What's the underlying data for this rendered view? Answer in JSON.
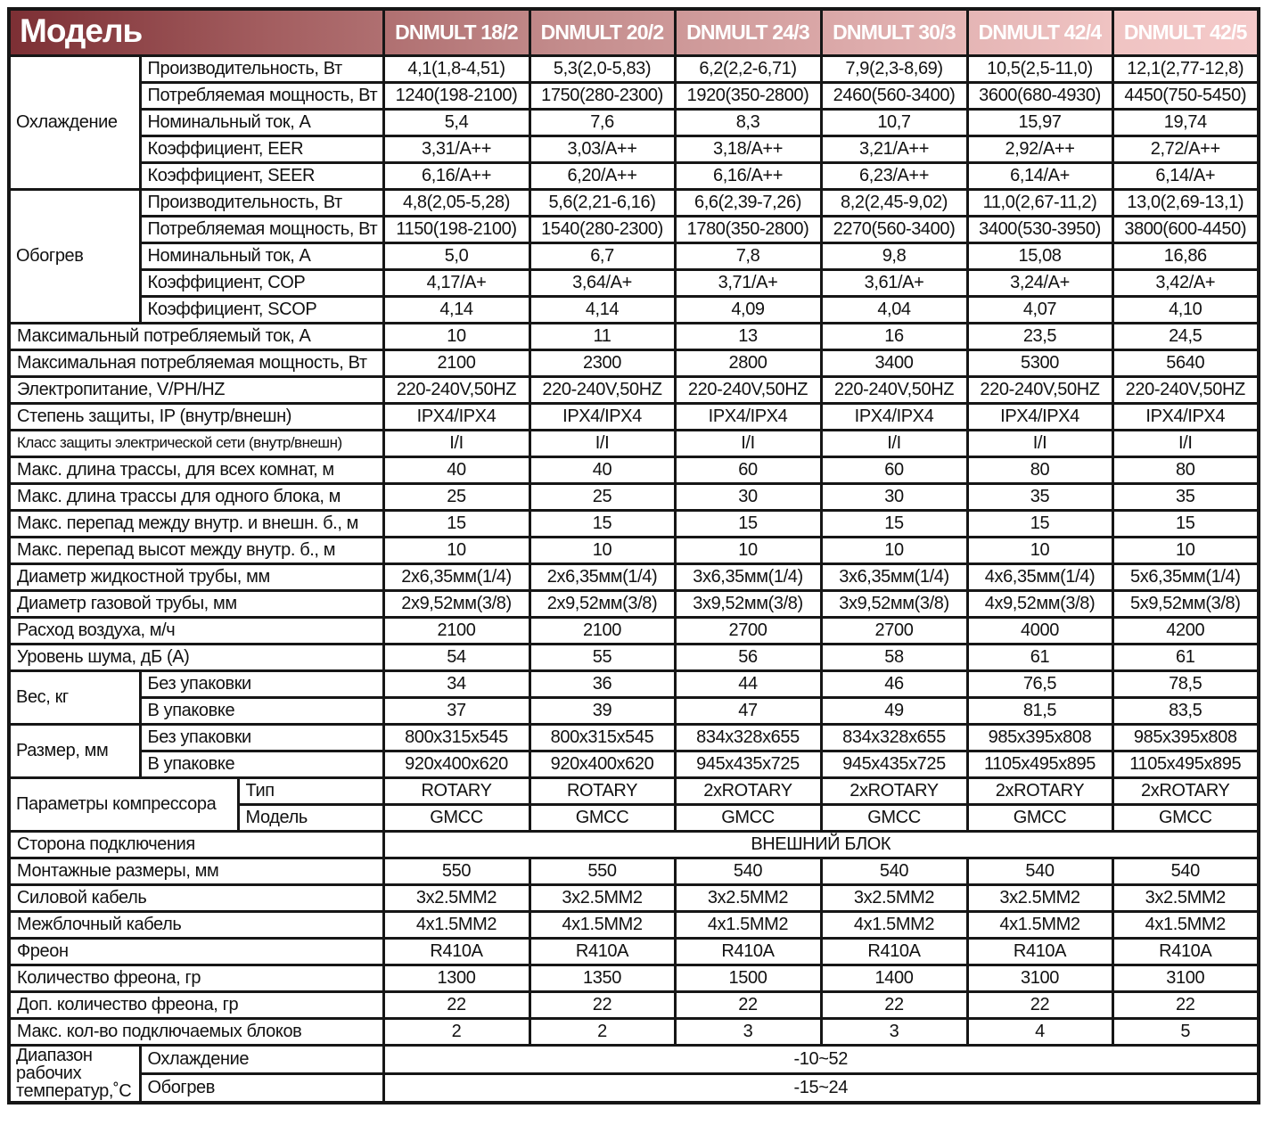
{
  "title": "Модель",
  "models": [
    "DNMULT 18/2",
    "DNMULT 20/2",
    "DNMULT 24/3",
    "DNMULT 30/3",
    "DNMULT 42/4",
    "DNMULT 42/5"
  ],
  "colors": {
    "header_gradient_left": "#7c2f34",
    "header_gradient_mid": "#c48d8d",
    "header_gradient_right": "#f5caca",
    "header_text": "#ffffff",
    "border": "#161616",
    "body_text": "#111111",
    "cell_background": "#ffffff"
  },
  "sections": [
    {
      "title": "Охлаждение",
      "rows": [
        {
          "label": "Производительность, Вт",
          "values": [
            "4,1(1,8-4,51)",
            "5,3(2,0-5,83)",
            "6,2(2,2-6,71)",
            "7,9(2,3-8,69)",
            "10,5(2,5-11,0)",
            "12,1(2,77-12,8)"
          ]
        },
        {
          "label": "Потребляемая мощность, Вт",
          "values": [
            "1240(198-2100)",
            "1750(280-2300)",
            "1920(350-2800)",
            "2460(560-3400)",
            "3600(680-4930)",
            "4450(750-5450)"
          ]
        },
        {
          "label": "Номинальный ток, А",
          "values": [
            "5,4",
            "7,6",
            "8,3",
            "10,7",
            "15,97",
            "19,74"
          ]
        },
        {
          "label": "Коэффициент, EER",
          "values": [
            "3,31/A++",
            "3,03/A++",
            "3,18/A++",
            "3,21/A++",
            "2,92/A++",
            "2,72/A++"
          ]
        },
        {
          "label": "Коэффициент, SEER",
          "values": [
            "6,16/A++",
            "6,20/A++",
            "6,16/A++",
            "6,23/A++",
            "6,14/A+",
            "6,14/A+"
          ]
        }
      ]
    },
    {
      "title": "Обогрев",
      "rows": [
        {
          "label": "Производительность, Вт",
          "values": [
            "4,8(2,05-5,28)",
            "5,6(2,21-6,16)",
            "6,6(2,39-7,26)",
            "8,2(2,45-9,02)",
            "11,0(2,67-11,2)",
            "13,0(2,69-13,1)"
          ]
        },
        {
          "label": "Потребляемая мощность, Вт",
          "values": [
            "1150(198-2100)",
            "1540(280-2300)",
            "1780(350-2800)",
            "2270(560-3400)",
            "3400(530-3950)",
            "3800(600-4450)"
          ]
        },
        {
          "label": "Номинальный ток, А",
          "values": [
            "5,0",
            "6,7",
            "7,8",
            "9,8",
            "15,08",
            "16,86"
          ]
        },
        {
          "label": "Коэффициент, COP",
          "values": [
            "4,17/A+",
            "3,64/A+",
            "3,71/A+",
            "3,61/A+",
            "3,24/A+",
            "3,42/A+"
          ]
        },
        {
          "label": "Коэффициент, SCOP",
          "values": [
            "4,14",
            "4,14",
            "4,09",
            "4,04",
            "4,07",
            "4,10"
          ]
        }
      ]
    },
    {
      "title": null,
      "rows": [
        {
          "label": "Максимальный потребляемый ток, А",
          "values": [
            "10",
            "11",
            "13",
            "16",
            "23,5",
            "24,5"
          ]
        }
      ]
    },
    {
      "title": null,
      "rows": [
        {
          "label": "Максимальная потребляемая мощность, Вт",
          "values": [
            "2100",
            "2300",
            "2800",
            "3400",
            "5300",
            "5640"
          ]
        }
      ]
    },
    {
      "title": null,
      "rows": [
        {
          "label": "Электропитание, V/PH/HZ",
          "values": [
            "220-240V,50HZ",
            "220-240V,50HZ",
            "220-240V,50HZ",
            "220-240V,50HZ",
            "220-240V,50HZ",
            "220-240V,50HZ"
          ]
        }
      ]
    },
    {
      "title": null,
      "rows": [
        {
          "label": "Степень защиты, IP (внутр/внешн)",
          "values": [
            "IPX4/IPX4",
            "IPX4/IPX4",
            "IPX4/IPX4",
            "IPX4/IPX4",
            "IPX4/IPX4",
            "IPX4/IPX4"
          ]
        }
      ]
    },
    {
      "title": null,
      "rows": [
        {
          "label": "Класс защиты электрической сети (внутр/внешн)",
          "values": [
            "I/I",
            "I/I",
            "I/I",
            "I/I",
            "I/I",
            "I/I"
          ]
        }
      ]
    },
    {
      "title": null,
      "rows": [
        {
          "label": "Макс. длина трассы, для всех комнат, м",
          "values": [
            "40",
            "40",
            "60",
            "60",
            "80",
            "80"
          ]
        }
      ]
    },
    {
      "title": null,
      "rows": [
        {
          "label": "Макс. длина трассы для одного блока, м",
          "values": [
            "25",
            "25",
            "30",
            "30",
            "35",
            "35"
          ]
        }
      ]
    },
    {
      "title": null,
      "rows": [
        {
          "label": "Макс. перепад между внутр. и внешн. б., м",
          "values": [
            "15",
            "15",
            "15",
            "15",
            "15",
            "15"
          ]
        }
      ]
    },
    {
      "title": null,
      "rows": [
        {
          "label": "Макс. перепад высот между внутр. б., м",
          "values": [
            "10",
            "10",
            "10",
            "10",
            "10",
            "10"
          ]
        }
      ]
    },
    {
      "title": null,
      "rows": [
        {
          "label": "Диаметр жидкостной трубы, мм",
          "values": [
            "2х6,35мм(1/4)",
            "2х6,35мм(1/4)",
            "3х6,35мм(1/4)",
            "3х6,35мм(1/4)",
            "4х6,35мм(1/4)",
            "5х6,35мм(1/4)"
          ]
        }
      ]
    },
    {
      "title": null,
      "rows": [
        {
          "label": "Диаметр газовой трубы, мм",
          "values": [
            "2х9,52мм(3/8)",
            "2х9,52мм(3/8)",
            "3х9,52мм(3/8)",
            "3х9,52мм(3/8)",
            "4х9,52мм(3/8)",
            "5х9,52мм(3/8)"
          ]
        }
      ]
    },
    {
      "title": null,
      "rows": [
        {
          "label": "Расход воздуха, м/ч",
          "values": [
            "2100",
            "2100",
            "2700",
            "2700",
            "4000",
            "4200"
          ]
        }
      ]
    },
    {
      "title": null,
      "rows": [
        {
          "label": "Уровень шума, дБ (А)",
          "values": [
            "54",
            "55",
            "56",
            "58",
            "61",
            "61"
          ]
        }
      ]
    },
    {
      "title": "Вес, кг",
      "rows": [
        {
          "label": "Без упаковки",
          "values": [
            "34",
            "36",
            "44",
            "46",
            "76,5",
            "78,5"
          ]
        },
        {
          "label": "В упаковке",
          "values": [
            "37",
            "39",
            "47",
            "49",
            "81,5",
            "83,5"
          ]
        }
      ]
    },
    {
      "title": "Размер, мм",
      "rows": [
        {
          "label": "Без упаковки",
          "values": [
            "800х315х545",
            "800х315х545",
            "834х328х655",
            "834х328х655",
            "985х395х808",
            "985х395х808"
          ]
        },
        {
          "label": "В упаковке",
          "values": [
            "920х400х620",
            "920х400х620",
            "945х435х725",
            "945х435х725",
            "1105х495х895",
            "1105х495х895"
          ]
        }
      ]
    },
    {
      "title": "Параметры компрессора",
      "title_wide": true,
      "rows": [
        {
          "label": "Тип",
          "values": [
            "ROTARY",
            "ROTARY",
            "2xROTARY",
            "2xROTARY",
            "2xROTARY",
            "2xROTARY"
          ]
        },
        {
          "label": "Модель",
          "values": [
            "GMCC",
            "GMCC",
            "GMCC",
            "GMCC",
            "GMCC",
            "GMCC"
          ]
        }
      ]
    },
    {
      "title": null,
      "rows": [
        {
          "label": "Сторона подключения",
          "span_value": "ВНЕШНИЙ БЛОК"
        }
      ]
    },
    {
      "title": null,
      "rows": [
        {
          "label": "Монтажные размеры, мм",
          "values": [
            "550",
            "550",
            "540",
            "540",
            "540",
            "540"
          ]
        }
      ]
    },
    {
      "title": null,
      "rows": [
        {
          "label": "Силовой кабель",
          "values": [
            "3х2.5ММ2",
            "3х2.5ММ2",
            "3х2.5ММ2",
            "3х2.5ММ2",
            "3х2.5ММ2",
            "3х2.5ММ2"
          ]
        }
      ]
    },
    {
      "title": null,
      "rows": [
        {
          "label": "Межблочный кабель",
          "values": [
            "4х1.5ММ2",
            "4х1.5ММ2",
            "4х1.5ММ2",
            "4х1.5ММ2",
            "4х1.5ММ2",
            "4х1.5ММ2"
          ]
        }
      ]
    },
    {
      "title": null,
      "rows": [
        {
          "label": "Фреон",
          "values": [
            "R410A",
            "R410A",
            "R410A",
            "R410A",
            "R410A",
            "R410A"
          ]
        }
      ]
    },
    {
      "title": null,
      "rows": [
        {
          "label": "Количество фреона, гр",
          "values": [
            "1300",
            "1350",
            "1500",
            "1400",
            "3100",
            "3100"
          ]
        }
      ]
    },
    {
      "title": null,
      "rows": [
        {
          "label": "Доп. количество фреона, гр",
          "values": [
            "22",
            "22",
            "22",
            "22",
            "22",
            "22"
          ]
        }
      ]
    },
    {
      "title": null,
      "rows": [
        {
          "label": "Макс. кол-во подключаемых блоков",
          "values": [
            "2",
            "2",
            "3",
            "3",
            "4",
            "5"
          ]
        }
      ]
    },
    {
      "title": "Диапазон\nрабочих\nтемператур,˚С",
      "rows": [
        {
          "label": "Охлаждение",
          "span_value": "-10~52"
        },
        {
          "label": "Обогрев",
          "span_value": "-15~24"
        }
      ]
    }
  ]
}
